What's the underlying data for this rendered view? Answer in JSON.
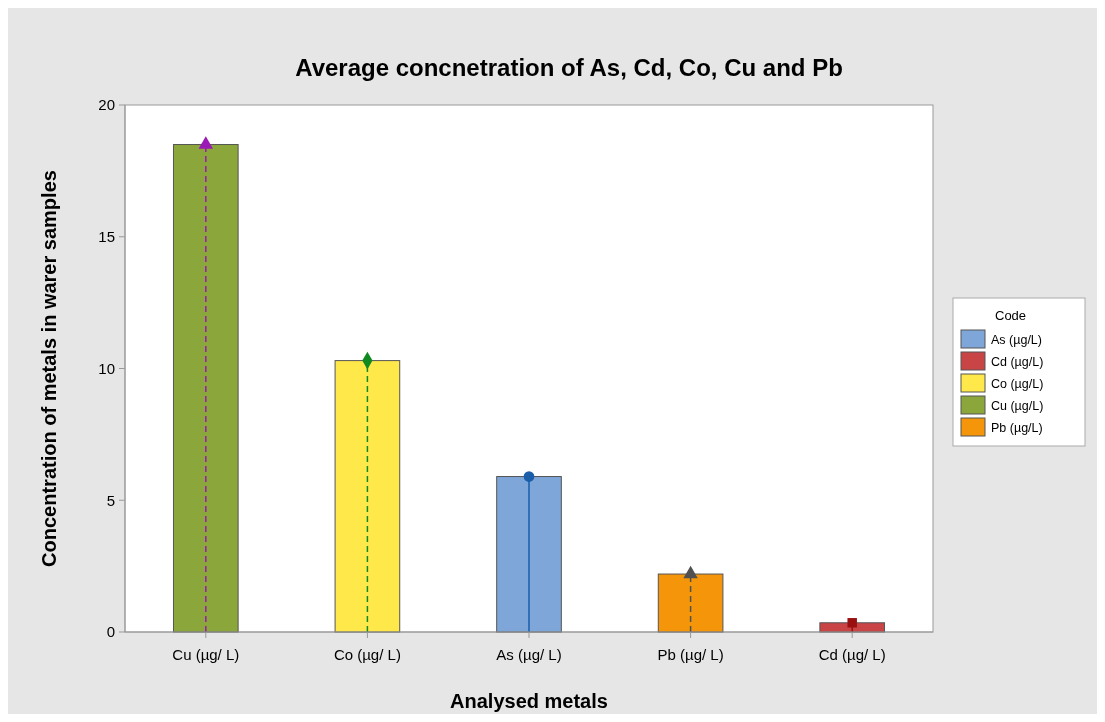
{
  "chart_data": {
    "type": "bar",
    "title": "Average concnetration of As, Cd, Co, Cu and Pb",
    "xlabel": "Analysed metals",
    "ylabel": "Concentration of metals in warer samples",
    "legend_title": "Code",
    "legend": "right",
    "categories": [
      "Cu (µg/ L)",
      "Co (µg/ L)",
      "As (µg/ L)",
      "Pb (µg/ L)",
      "Cd (µg/ L)"
    ],
    "ylim": [
      0,
      20
    ],
    "yticks": [
      0,
      5,
      10,
      15,
      20
    ],
    "series": [
      {
        "name": "As (µg/L)",
        "color": "#7ea6d8",
        "values": [
          null,
          null,
          5.9,
          null,
          null
        ]
      },
      {
        "name": "Cd (µg/L)",
        "color": "#c94444",
        "values": [
          null,
          null,
          null,
          null,
          0.35
        ]
      },
      {
        "name": "Co (µg/L)",
        "color": "#ffe84a",
        "values": [
          null,
          10.3,
          null,
          null,
          null
        ]
      },
      {
        "name": "Cu (µg/L)",
        "color": "#8ba63a",
        "values": [
          18.5,
          null,
          null,
          null,
          null
        ]
      },
      {
        "name": "Pb (µg/L)",
        "color": "#f5960a",
        "values": [
          null,
          null,
          null,
          2.2,
          null
        ]
      },
      {
        "type": "scatter",
        "x": [
          "Cu (µg/ L)"
        ],
        "values": [
          18.5
        ],
        "color": "#9b19b5",
        "marker": "triangle",
        "line_style": "dashed"
      },
      {
        "type": "scatter",
        "x": [
          "Co (µg/ L)"
        ],
        "values": [
          10.3
        ],
        "color": "#108a20",
        "marker": "diamond",
        "line_style": "dashed"
      },
      {
        "type": "scatter",
        "x": [
          "As (µg/ L)"
        ],
        "values": [
          5.9
        ],
        "color": "#1a5eaa",
        "marker": "circle",
        "line_style": "solid"
      },
      {
        "type": "scatter",
        "x": [
          "Pb (µg/ L)"
        ],
        "values": [
          2.2
        ],
        "color": "#505050",
        "marker": "triangle",
        "line_style": "dashed"
      },
      {
        "type": "scatter",
        "x": [
          "Cd (µg/ L)"
        ],
        "values": [
          0.35
        ],
        "color": "#9a1010",
        "marker": "square",
        "line_style": "solid"
      }
    ]
  }
}
